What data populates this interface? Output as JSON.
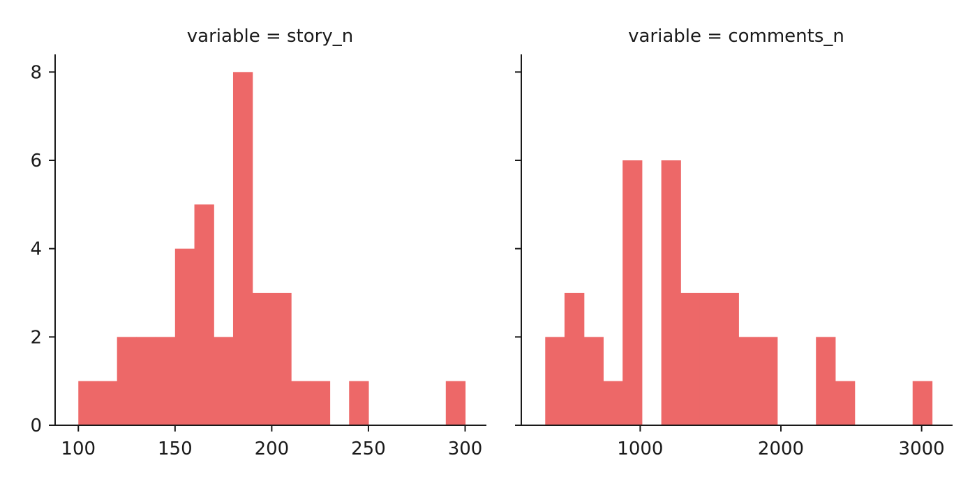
{
  "chart_data": [
    {
      "type": "bar",
      "title": "variable = story_n",
      "xlabel": "",
      "ylabel": "",
      "xlim": [
        88,
        311
      ],
      "ylim": [
        0,
        8.4
      ],
      "x_ticks": [
        100,
        150,
        200,
        250,
        300
      ],
      "y_ticks": [
        0,
        2,
        4,
        6,
        8
      ],
      "y_tick_labels": [
        "0",
        "2",
        "4",
        "6",
        "8"
      ],
      "bins": [
        {
          "x0": 100,
          "x1": 110,
          "count": 1
        },
        {
          "x0": 110,
          "x1": 120,
          "count": 1
        },
        {
          "x0": 120,
          "x1": 130,
          "count": 2
        },
        {
          "x0": 130,
          "x1": 140,
          "count": 2
        },
        {
          "x0": 140,
          "x1": 150,
          "count": 2
        },
        {
          "x0": 150,
          "x1": 160,
          "count": 4
        },
        {
          "x0": 160,
          "x1": 170,
          "count": 5
        },
        {
          "x0": 170,
          "x1": 180,
          "count": 2
        },
        {
          "x0": 180,
          "x1": 190,
          "count": 8
        },
        {
          "x0": 190,
          "x1": 200,
          "count": 3
        },
        {
          "x0": 200,
          "x1": 210,
          "count": 3
        },
        {
          "x0": 210,
          "x1": 220,
          "count": 1
        },
        {
          "x0": 220,
          "x1": 230,
          "count": 1
        },
        {
          "x0": 230,
          "x1": 240,
          "count": 0
        },
        {
          "x0": 240,
          "x1": 250,
          "count": 1
        },
        {
          "x0": 250,
          "x1": 260,
          "count": 0
        },
        {
          "x0": 260,
          "x1": 270,
          "count": 0
        },
        {
          "x0": 270,
          "x1": 280,
          "count": 0
        },
        {
          "x0": 280,
          "x1": 290,
          "count": 0
        },
        {
          "x0": 290,
          "x1": 300,
          "count": 1
        }
      ]
    },
    {
      "type": "bar",
      "title": "variable = comments_n",
      "xlabel": "",
      "ylabel": "",
      "xlim": [
        155,
        3220
      ],
      "ylim": [
        0,
        8.4
      ],
      "x_ticks": [
        1000,
        2000,
        3000
      ],
      "y_ticks": [
        0,
        2,
        4,
        6,
        8
      ],
      "y_tick_labels": [],
      "bins": [
        {
          "x0": 325,
          "x1": 462,
          "count": 2
        },
        {
          "x0": 462,
          "x1": 600,
          "count": 3
        },
        {
          "x0": 600,
          "x1": 737,
          "count": 2
        },
        {
          "x0": 737,
          "x1": 875,
          "count": 1
        },
        {
          "x0": 875,
          "x1": 1012,
          "count": 6
        },
        {
          "x0": 1012,
          "x1": 1150,
          "count": 0
        },
        {
          "x0": 1150,
          "x1": 1287,
          "count": 6
        },
        {
          "x0": 1287,
          "x1": 1424,
          "count": 3
        },
        {
          "x0": 1424,
          "x1": 1562,
          "count": 3
        },
        {
          "x0": 1562,
          "x1": 1699,
          "count": 3
        },
        {
          "x0": 1699,
          "x1": 1837,
          "count": 2
        },
        {
          "x0": 1837,
          "x1": 1974,
          "count": 2
        },
        {
          "x0": 1974,
          "x1": 2112,
          "count": 0
        },
        {
          "x0": 2112,
          "x1": 2249,
          "count": 0
        },
        {
          "x0": 2249,
          "x1": 2386,
          "count": 2
        },
        {
          "x0": 2386,
          "x1": 2524,
          "count": 1
        },
        {
          "x0": 2524,
          "x1": 2661,
          "count": 0
        },
        {
          "x0": 2661,
          "x1": 2799,
          "count": 0
        },
        {
          "x0": 2799,
          "x1": 2936,
          "count": 0
        },
        {
          "x0": 2936,
          "x1": 3074,
          "count": 1
        }
      ]
    }
  ],
  "colors": {
    "bar": "#ed6868",
    "axis": "#1a1a1a",
    "background": "#ffffff"
  }
}
